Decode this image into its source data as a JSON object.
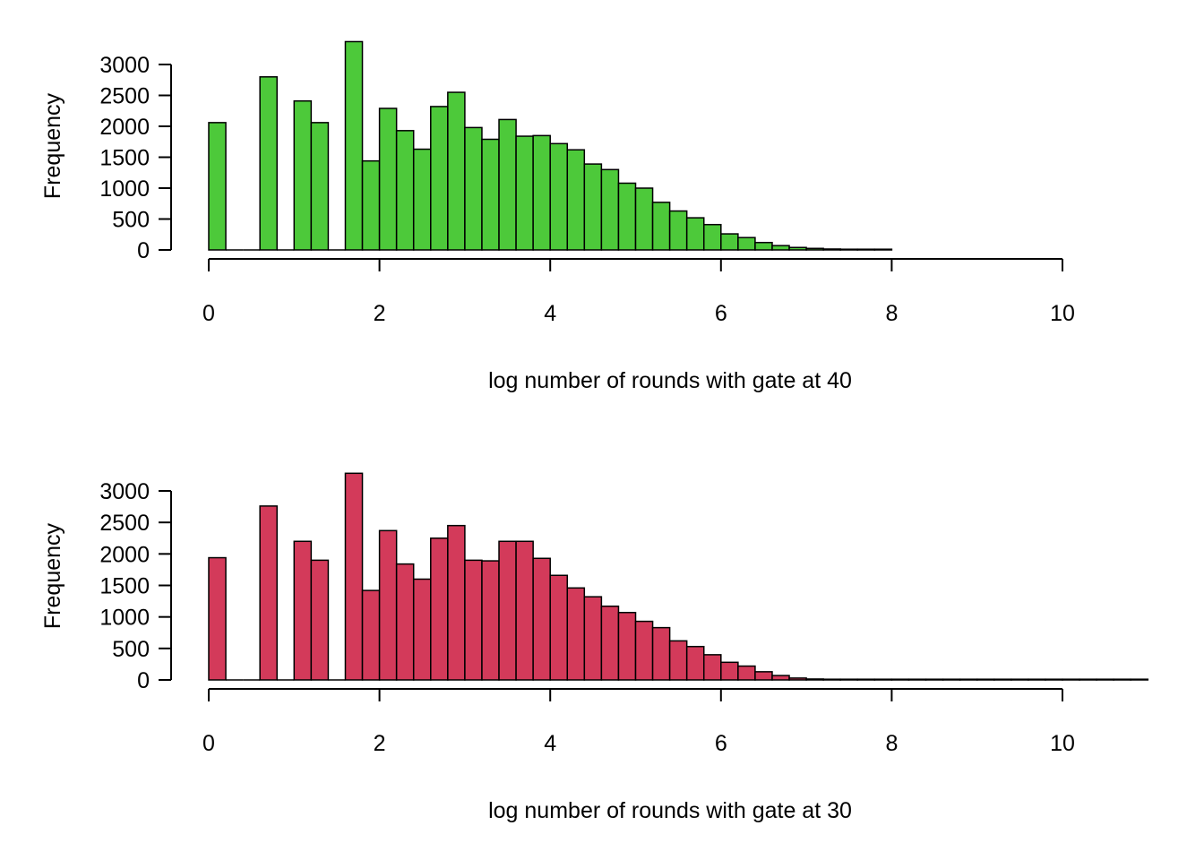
{
  "chart_data": [
    {
      "type": "bar",
      "title": "",
      "xlabel": "log number of rounds with gate at 40",
      "ylabel": "Frequency",
      "color": "#4dc93a",
      "bin_width": 0.2,
      "bin_start": 0,
      "xlim": [
        0,
        10
      ],
      "ylim": [
        0,
        3000
      ],
      "x_ticks": [
        0,
        2,
        4,
        6,
        8,
        10
      ],
      "y_ticks": [
        0,
        500,
        1000,
        1500,
        2000,
        2500,
        3000
      ],
      "values": [
        2060,
        0,
        0,
        2800,
        0,
        2410,
        2060,
        0,
        3370,
        1440,
        2290,
        1930,
        1630,
        2320,
        2550,
        1980,
        1790,
        2110,
        1840,
        1850,
        1720,
        1620,
        1390,
        1300,
        1080,
        1000,
        770,
        630,
        520,
        410,
        260,
        200,
        120,
        70,
        40,
        25,
        15,
        10,
        5,
        3
      ]
    },
    {
      "type": "bar",
      "title": "",
      "xlabel": "log number of rounds with gate at 30",
      "ylabel": "Frequency",
      "color": "#d33a5a",
      "bin_width": 0.2,
      "bin_start": 0,
      "xlim": [
        0,
        10
      ],
      "ylim": [
        0,
        3000
      ],
      "x_ticks": [
        0,
        2,
        4,
        6,
        8,
        10
      ],
      "y_ticks": [
        0,
        500,
        1000,
        1500,
        2000,
        2500,
        3000
      ],
      "values": [
        1940,
        0,
        0,
        2760,
        0,
        2200,
        1900,
        0,
        3280,
        1420,
        2370,
        1840,
        1600,
        2250,
        2450,
        1900,
        1890,
        2200,
        2200,
        1930,
        1660,
        1460,
        1320,
        1170,
        1070,
        930,
        830,
        620,
        530,
        400,
        280,
        220,
        130,
        70,
        30,
        15,
        8,
        4,
        2,
        1,
        1,
        1,
        1,
        1,
        1,
        1,
        1,
        1,
        1,
        1,
        1,
        1,
        1,
        1,
        1
      ]
    }
  ]
}
